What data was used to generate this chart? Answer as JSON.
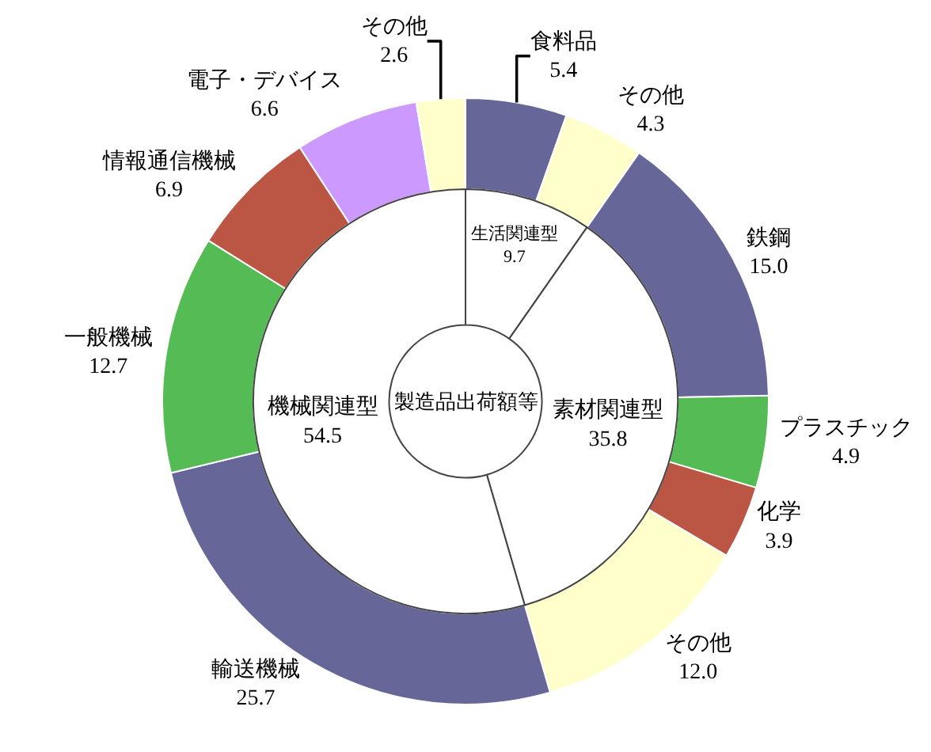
{
  "chart_data": [
    {
      "type": "donut",
      "title": "製造品出荷額等",
      "categories": [
        "生活関連型",
        "素材関連型",
        "機械関連型"
      ],
      "values": [
        9.7,
        35.8,
        54.5
      ],
      "value_labels": [
        "9.7",
        "35.8",
        "54.5"
      ],
      "colors": [
        "#ffffff",
        "#ffffff",
        "#ffffff"
      ]
    },
    {
      "type": "donut",
      "categories": [
        "食料品",
        "その他",
        "鉄鋼",
        "プラスチック",
        "化学",
        "その他",
        "輸送機械",
        "一般機械",
        "情報通信機械",
        "電子・デバイス",
        "その他"
      ],
      "values": [
        5.4,
        4.3,
        15.0,
        4.9,
        3.9,
        12.0,
        25.7,
        12.7,
        6.9,
        6.6,
        2.6
      ],
      "value_labels": [
        "5.4",
        "4.3",
        "15.0",
        "4.9",
        "3.9",
        "12.0",
        "25.7",
        "12.7",
        "6.9",
        "6.6",
        "2.6"
      ],
      "colors": [
        "#666699",
        "#ffffcc",
        "#666699",
        "#55bb55",
        "#bb5544",
        "#ffffcc",
        "#666699",
        "#55bb55",
        "#bb5544",
        "#cc99ff",
        "#ffffcc"
      ]
    }
  ]
}
